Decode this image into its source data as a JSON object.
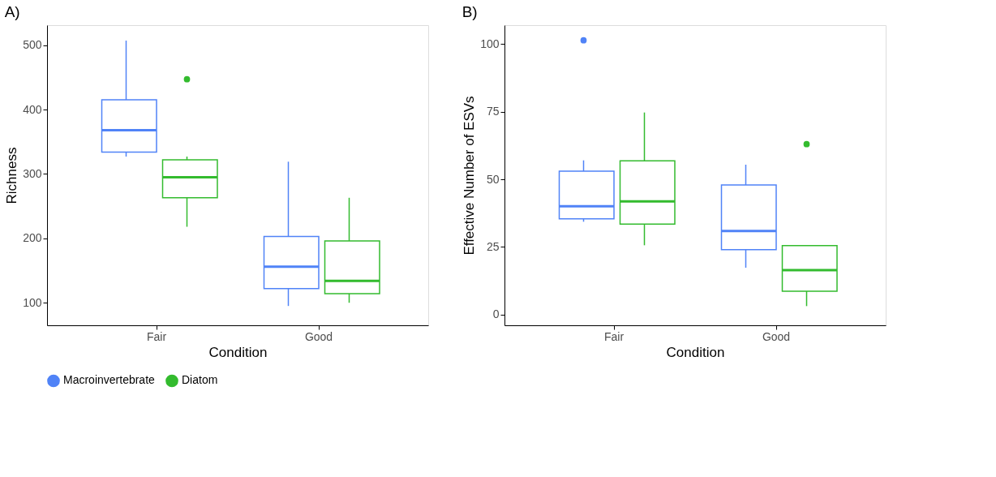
{
  "chart_data": [
    {
      "type": "box",
      "title": "A)",
      "xlabel": "Condition",
      "ylabel": "Richness",
      "categories": [
        "Fair",
        "Good"
      ],
      "ylim": [
        65,
        531
      ],
      "yticks": [
        100,
        200,
        300,
        400,
        500
      ],
      "grid": false,
      "legend": "bottom",
      "series": [
        {
          "name": "Macroinvertebrate",
          "color": "#5083f7",
          "boxes": [
            {
              "low": 327,
              "q1": 334,
              "median": 368,
              "q3": 415,
              "high": 507
            },
            {
              "low": 95,
              "q1": 122,
              "median": 156,
              "q3": 203,
              "high": 319
            }
          ]
        },
        {
          "name": "Diatom",
          "color": "#33bb2e",
          "boxes": [
            {
              "low": 218,
              "q1": 263,
              "median": 295,
              "q3": 322,
              "high": 327,
              "outliers": [
                447
              ]
            },
            {
              "low": 100,
              "q1": 114,
              "median": 134,
              "q3": 196,
              "high": 263
            }
          ]
        }
      ]
    },
    {
      "type": "box",
      "title": "B)",
      "xlabel": "Condition",
      "ylabel": "Effective Number of ESVs",
      "categories": [
        "Fair",
        "Good"
      ],
      "ylim": [
        -4,
        107
      ],
      "yticks": [
        0,
        25,
        50,
        75,
        100
      ],
      "grid": false,
      "legend": "bottom",
      "series": [
        {
          "name": "Macroinvertebrate",
          "color": "#5083f7",
          "boxes": [
            {
              "low": 34.3,
              "q1": 35.4,
              "median": 40,
              "q3": 53,
              "high": 57,
              "outliers": [
                101.4
              ]
            },
            {
              "low": 17.3,
              "q1": 24,
              "median": 30.9,
              "q3": 47.9,
              "high": 55.4
            }
          ]
        },
        {
          "name": "Diatom",
          "color": "#33bb2e",
          "boxes": [
            {
              "low": 25.6,
              "q1": 33.4,
              "median": 41.8,
              "q3": 56.8,
              "high": 74.7
            },
            {
              "low": 3.1,
              "q1": 8.6,
              "median": 16.4,
              "q3": 25.5,
              "high": 25.6,
              "outliers": [
                63
              ]
            }
          ]
        }
      ]
    }
  ]
}
